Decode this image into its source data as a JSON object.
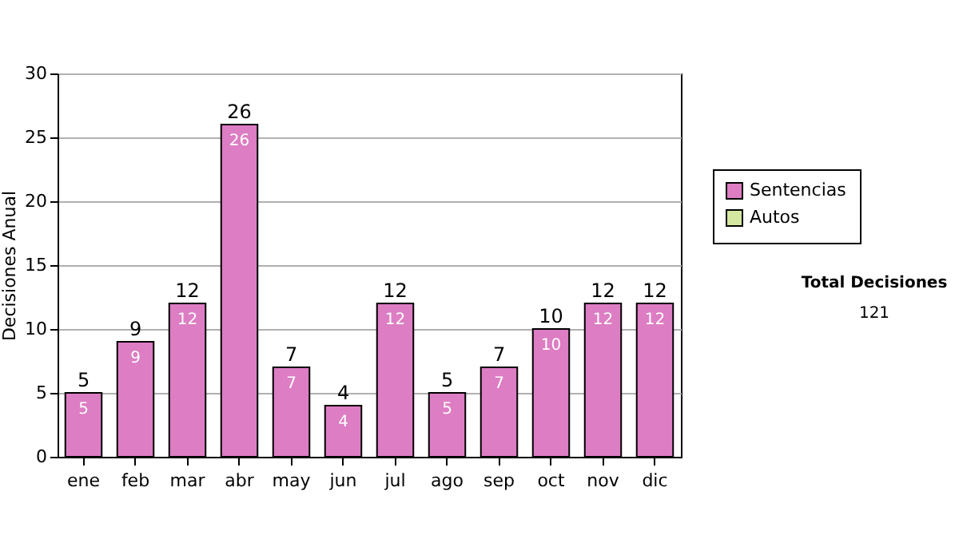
{
  "chart_data": {
    "type": "bar",
    "stacked": true,
    "ylabel": "Decisiones Anual",
    "categories": [
      "ene",
      "feb",
      "mar",
      "abr",
      "may",
      "jun",
      "jul",
      "ago",
      "sep",
      "oct",
      "nov",
      "dic"
    ],
    "series": [
      {
        "name": "Sentencias",
        "color": "#dd7dc3",
        "values": [
          5,
          9,
          12,
          26,
          7,
          4,
          12,
          5,
          7,
          10,
          12,
          12
        ],
        "value_labels": [
          "5",
          "9",
          "12",
          "26",
          "7",
          "4",
          "12",
          "5",
          "7",
          "10",
          "12",
          "12"
        ]
      },
      {
        "name": "Autos",
        "color": "#d4e8a0",
        "values": [
          null,
          null,
          null,
          null,
          null,
          null,
          null,
          null,
          null,
          null,
          null,
          null
        ]
      }
    ],
    "totals": [
      "5",
      "9",
      "12",
      "26",
      "7",
      "4",
      "12",
      "5",
      "7",
      "10",
      "12",
      "12"
    ],
    "ylim": [
      0,
      30
    ],
    "yticks": [
      0,
      5,
      10,
      15,
      20,
      25,
      30
    ],
    "grid": "y",
    "legend": "right",
    "annotations": [
      "Total Decisiones",
      "121"
    ]
  }
}
